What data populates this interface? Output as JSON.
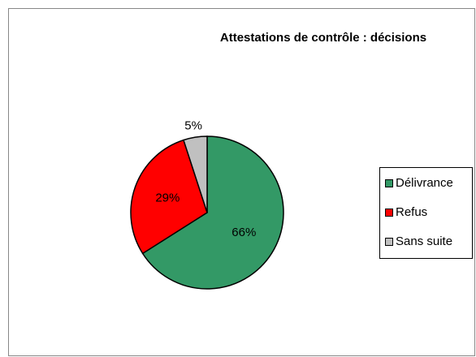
{
  "chart_data": {
    "type": "pie",
    "title": "Attestations de contrôle : décisions",
    "categories": [
      "Délivrance",
      "Refus",
      "Sans suite"
    ],
    "values": [
      66,
      29,
      5
    ],
    "value_labels": [
      "66%",
      "29%",
      "5%"
    ],
    "colors": [
      "#339966",
      "#ff0000",
      "#c0c0c0"
    ],
    "legend": "right"
  }
}
